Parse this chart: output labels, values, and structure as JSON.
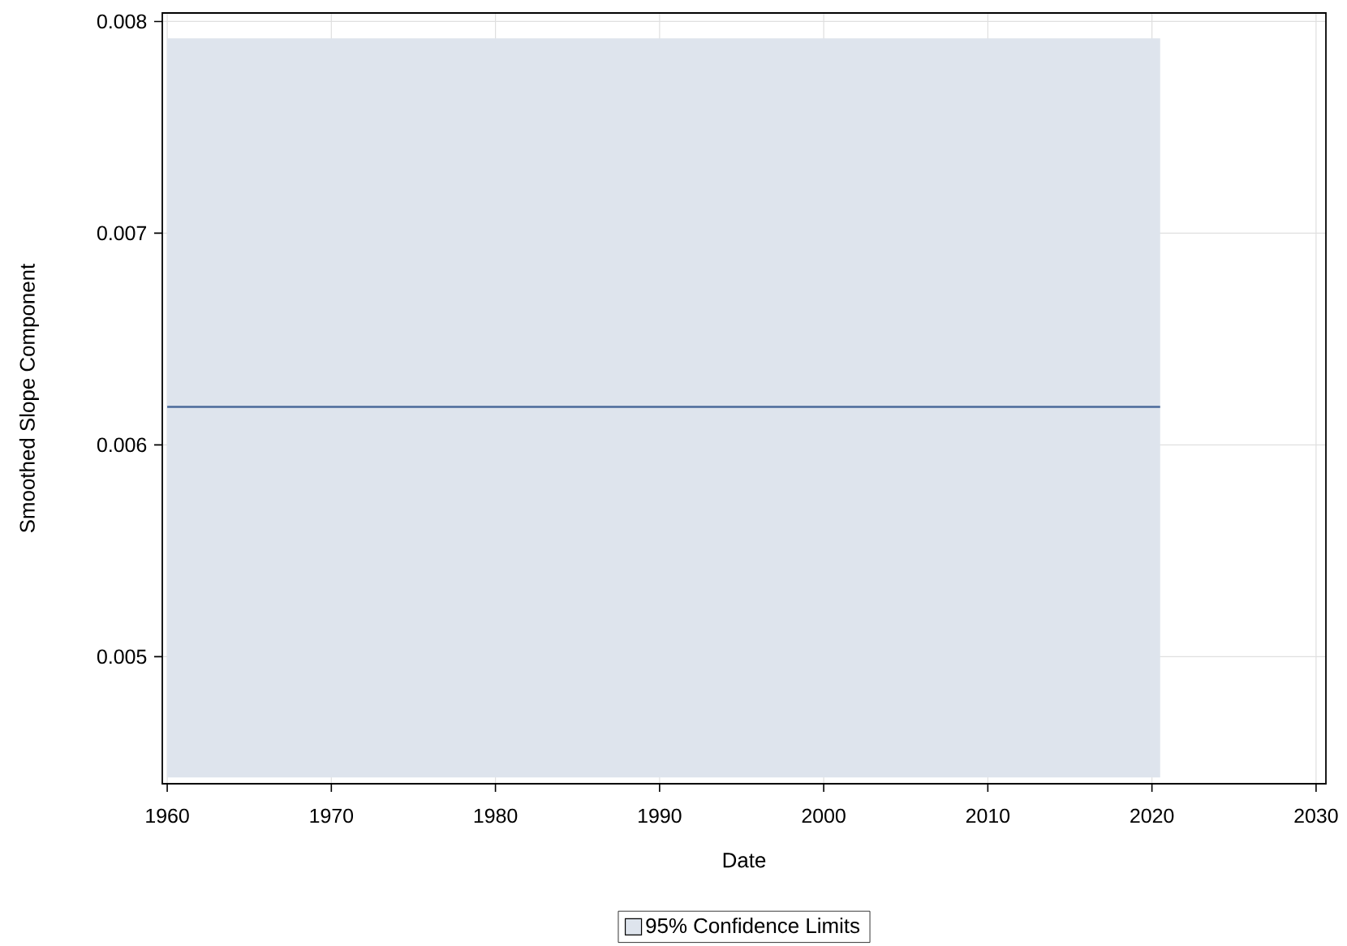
{
  "chart_data": {
    "type": "line",
    "xlabel": "Date",
    "ylabel": "Smoothed Slope Component",
    "x": [
      1960.0,
      2020.5
    ],
    "series": [
      {
        "name": "95% Confidence Limits",
        "color": "#4a6a9a",
        "values": [
          0.00618,
          0.00618
        ],
        "lower": [
          0.00443,
          0.00443
        ],
        "upper": [
          0.00792,
          0.00792
        ]
      }
    ],
    "xlim": [
      1959.7,
      2030.6
    ],
    "ylim": [
      0.0044,
      0.00804
    ],
    "xticks": [
      1960,
      1970,
      1980,
      1990,
      2000,
      2010,
      2020,
      2030
    ],
    "yticks": [
      0.005,
      0.006,
      0.007,
      0.008
    ],
    "grid": true,
    "legend": "bottom"
  }
}
